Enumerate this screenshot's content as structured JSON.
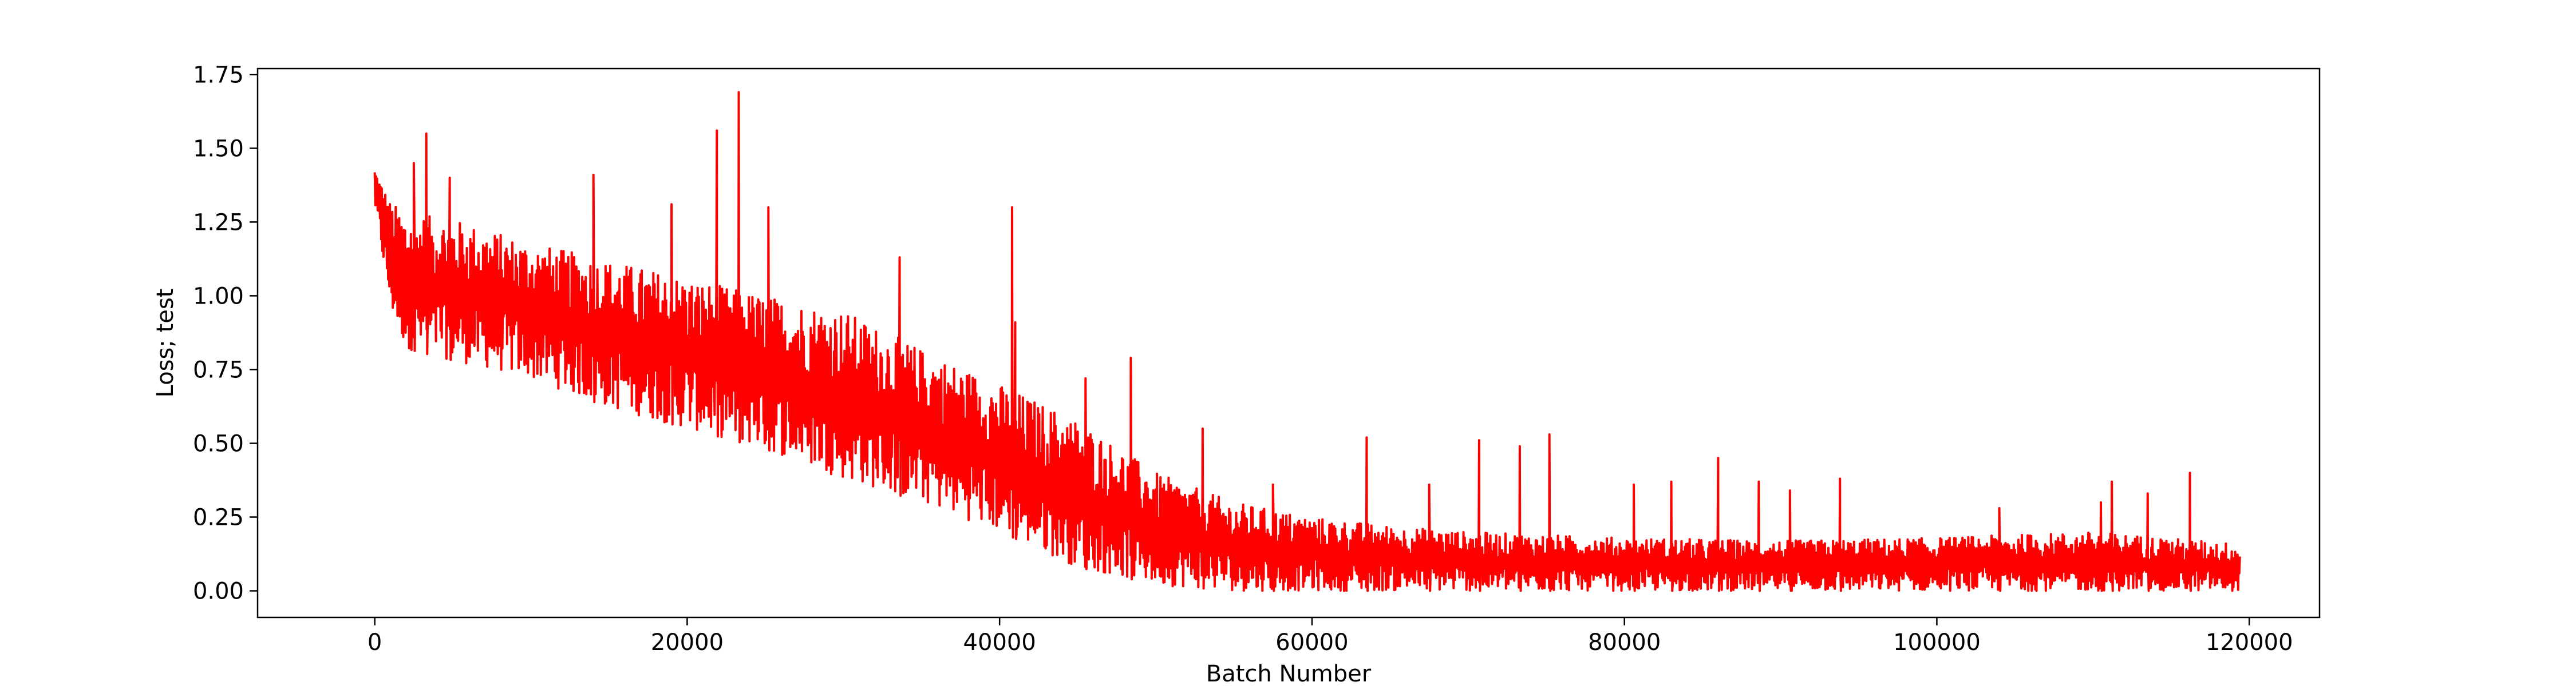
{
  "chart_data": {
    "type": "line",
    "title": "",
    "xlabel": "Batch Number",
    "ylabel": "Loss; test",
    "xlim": [
      -7500,
      124500
    ],
    "ylim": [
      -0.09,
      1.77
    ],
    "grid": false,
    "legend": "none",
    "x_ticks": [
      0,
      20000,
      40000,
      60000,
      80000,
      100000,
      120000
    ],
    "x_tick_labels": [
      "0",
      "20000",
      "40000",
      "60000",
      "80000",
      "100000",
      "120000"
    ],
    "y_ticks": [
      0.0,
      0.25,
      0.5,
      0.75,
      1.0,
      1.25,
      1.5,
      1.75
    ],
    "y_tick_labels": [
      "0.00",
      "0.25",
      "0.50",
      "0.75",
      "1.00",
      "1.25",
      "1.50",
      "1.75"
    ],
    "series": [
      {
        "color": "#ff0000",
        "x_range": [
          0,
          119400
        ],
        "trend": {
          "x": [
            0,
            1000,
            2000,
            5000,
            10000,
            15000,
            20000,
            25000,
            30000,
            35000,
            40000,
            45000,
            50000,
            55000,
            60000,
            65000,
            70000,
            80000,
            90000,
            100000,
            110000,
            119400
          ],
          "upper": [
            1.44,
            1.32,
            1.28,
            1.26,
            1.18,
            1.12,
            1.06,
            1.0,
            0.95,
            0.82,
            0.7,
            0.58,
            0.4,
            0.3,
            0.25,
            0.22,
            0.2,
            0.18,
            0.17,
            0.18,
            0.2,
            0.16
          ],
          "lower": [
            1.3,
            0.95,
            0.82,
            0.78,
            0.72,
            0.62,
            0.55,
            0.48,
            0.38,
            0.3,
            0.2,
            0.08,
            0.02,
            0.0,
            0.0,
            0.0,
            0.0,
            0.0,
            0.0,
            0.0,
            0.0,
            0.0
          ]
        },
        "spikes": [
          {
            "x": 2500,
            "y": 1.45
          },
          {
            "x": 3300,
            "y": 1.55
          },
          {
            "x": 4800,
            "y": 1.4
          },
          {
            "x": 14000,
            "y": 1.41
          },
          {
            "x": 19000,
            "y": 1.31
          },
          {
            "x": 21900,
            "y": 1.56
          },
          {
            "x": 23300,
            "y": 1.69
          },
          {
            "x": 25200,
            "y": 1.3
          },
          {
            "x": 33600,
            "y": 1.13
          },
          {
            "x": 40800,
            "y": 1.3
          },
          {
            "x": 41000,
            "y": 0.91
          },
          {
            "x": 45500,
            "y": 0.72
          },
          {
            "x": 48400,
            "y": 0.79
          },
          {
            "x": 53000,
            "y": 0.55
          },
          {
            "x": 57500,
            "y": 0.36
          },
          {
            "x": 63500,
            "y": 0.52
          },
          {
            "x": 67500,
            "y": 0.36
          },
          {
            "x": 70700,
            "y": 0.51
          },
          {
            "x": 73300,
            "y": 0.49
          },
          {
            "x": 75200,
            "y": 0.53
          },
          {
            "x": 80600,
            "y": 0.36
          },
          {
            "x": 83000,
            "y": 0.37
          },
          {
            "x": 86000,
            "y": 0.45
          },
          {
            "x": 88600,
            "y": 0.37
          },
          {
            "x": 90600,
            "y": 0.34
          },
          {
            "x": 93800,
            "y": 0.38
          },
          {
            "x": 104000,
            "y": 0.28
          },
          {
            "x": 110500,
            "y": 0.3
          },
          {
            "x": 111200,
            "y": 0.37
          },
          {
            "x": 113500,
            "y": 0.33
          },
          {
            "x": 116200,
            "y": 0.4
          }
        ]
      }
    ]
  }
}
